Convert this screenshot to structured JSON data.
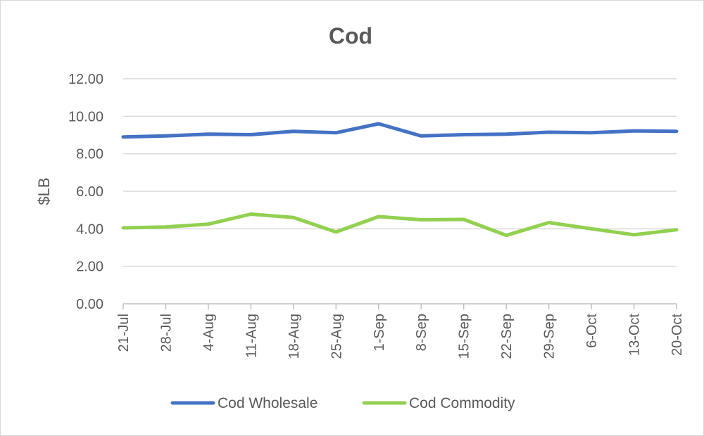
{
  "chart_data": {
    "type": "line",
    "title": "Cod",
    "xlabel": "",
    "ylabel": "$LB",
    "ylim": [
      0,
      12
    ],
    "ytick_step": 2,
    "ytick_labels": [
      "0.00",
      "2.00",
      "4.00",
      "6.00",
      "8.00",
      "10.00",
      "12.00"
    ],
    "grid": true,
    "legend_position": "bottom",
    "categories": [
      "21-Jul",
      "28-Jul",
      "4-Aug",
      "11-Aug",
      "18-Aug",
      "25-Aug",
      "1-Sep",
      "8-Sep",
      "15-Sep",
      "22-Sep",
      "29-Sep",
      "6-Oct",
      "13-Oct",
      "20-Oct"
    ],
    "series": [
      {
        "name": "Cod Wholesale",
        "color": "#4472c4",
        "values": [
          8.9,
          8.95,
          9.05,
          9.02,
          9.2,
          9.12,
          9.6,
          8.95,
          9.02,
          9.05,
          9.15,
          9.12,
          9.22,
          9.2
        ]
      },
      {
        "name": "Cod Commodity",
        "color": "#92d050",
        "values": [
          4.05,
          4.1,
          4.25,
          4.78,
          4.6,
          3.83,
          4.65,
          4.48,
          4.5,
          3.65,
          4.33,
          4.0,
          3.68,
          3.95
        ]
      }
    ]
  }
}
